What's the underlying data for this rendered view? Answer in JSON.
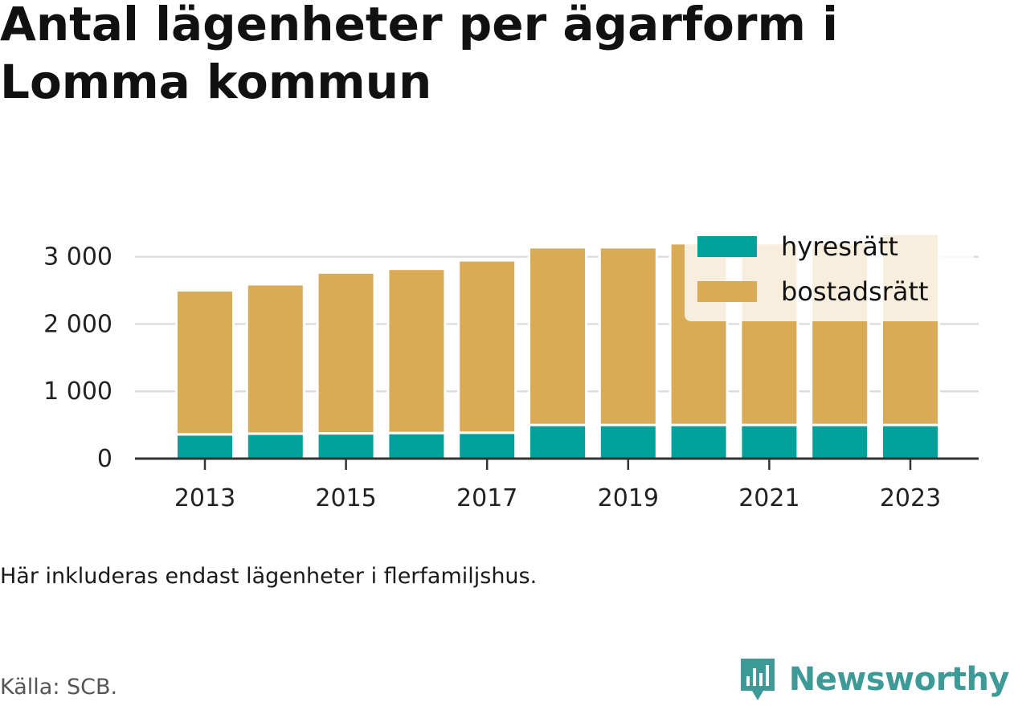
{
  "title": "Antal lägenheter per ägarform i Lomma kommun",
  "note": "Här inkluderas endast lägenheter i flerfamiljshus.",
  "source": "Källa: SCB.",
  "brand": {
    "name": "Newsworthy",
    "icon": "newsworthy-logo-icon",
    "color": "#3e9a96"
  },
  "colors": {
    "hyresratt": "#00a19a",
    "bostadsratt": "#d9ab57",
    "grid": "#dddddd",
    "axis": "#333333",
    "text": "#111111"
  },
  "chart_data": {
    "type": "bar",
    "stacked": true,
    "categories": [
      "2013",
      "2014",
      "2015",
      "2016",
      "2017",
      "2018",
      "2019",
      "2020",
      "2021",
      "2022",
      "2023"
    ],
    "series": [
      {
        "name": "hyresrätt",
        "color": "#00a19a",
        "values": [
          360,
          370,
          375,
          380,
          385,
          500,
          500,
          500,
          500,
          500,
          500
        ]
      },
      {
        "name": "bostadsrätt",
        "color": "#d9ab57",
        "values": [
          2140,
          2220,
          2390,
          2440,
          2560,
          2640,
          2640,
          2700,
          2700,
          2700,
          2840
        ]
      }
    ],
    "x_tick_labels": [
      "2013",
      "2015",
      "2017",
      "2019",
      "2021",
      "2023"
    ],
    "y_ticks": [
      0,
      1000,
      2000,
      3000
    ],
    "y_tick_labels": [
      "0",
      "1 000",
      "2 000",
      "3 000"
    ],
    "ylim": [
      0,
      3300
    ],
    "grid": true,
    "legend_position": "top-right"
  }
}
